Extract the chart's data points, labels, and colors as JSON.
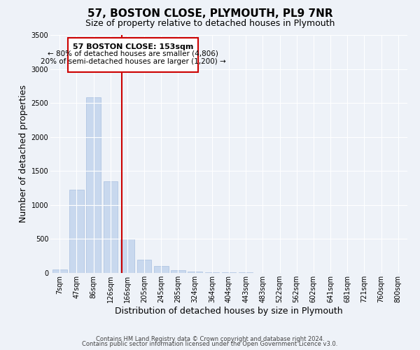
{
  "title": "57, BOSTON CLOSE, PLYMOUTH, PL9 7NR",
  "subtitle": "Size of property relative to detached houses in Plymouth",
  "xlabel": "Distribution of detached houses by size in Plymouth",
  "ylabel": "Number of detached properties",
  "bar_labels": [
    "7sqm",
    "47sqm",
    "86sqm",
    "126sqm",
    "166sqm",
    "205sqm",
    "245sqm",
    "285sqm",
    "324sqm",
    "364sqm",
    "404sqm",
    "443sqm",
    "483sqm",
    "522sqm",
    "562sqm",
    "602sqm",
    "641sqm",
    "681sqm",
    "721sqm",
    "760sqm",
    "800sqm"
  ],
  "bar_values": [
    50,
    1230,
    2580,
    1350,
    500,
    195,
    100,
    40,
    20,
    12,
    8,
    8,
    3,
    2,
    1,
    1,
    0,
    0,
    0,
    0,
    0
  ],
  "bar_color": "#c8d8ee",
  "bar_edgecolor": "#a8c0e0",
  "vline_color": "#cc0000",
  "ylim": [
    0,
    3500
  ],
  "yticks": [
    0,
    500,
    1000,
    1500,
    2000,
    2500,
    3000,
    3500
  ],
  "annotation_box_text_line1": "57 BOSTON CLOSE: 153sqm",
  "annotation_box_text_line2": "← 80% of detached houses are smaller (4,806)",
  "annotation_box_text_line3": "20% of semi-detached houses are larger (1,200) →",
  "annotation_box_color": "#cc0000",
  "footer_line1": "Contains HM Land Registry data © Crown copyright and database right 2024.",
  "footer_line2": "Contains public sector information licensed under the Open Government Licence v3.0.",
  "background_color": "#eef2f8",
  "plot_bg_color": "#eef2f8",
  "grid_color": "#ffffff",
  "title_fontsize": 11,
  "subtitle_fontsize": 9,
  "axis_label_fontsize": 9,
  "tick_fontsize": 7,
  "footer_fontsize": 6,
  "annot_fontsize1": 8,
  "annot_fontsize2": 7.5
}
